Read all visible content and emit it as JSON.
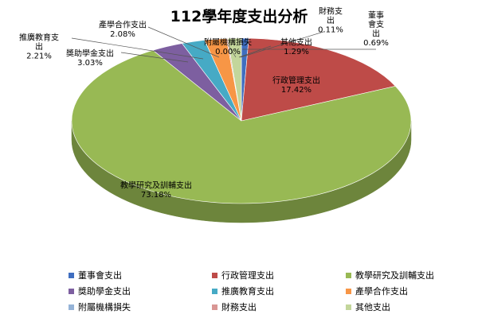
{
  "chart_data": {
    "type": "pie",
    "title": "112學年度支出分析",
    "slices": [
      {
        "name": "董事會支出",
        "value": 0.69,
        "label": "0.69%",
        "color": "#3f6ec0"
      },
      {
        "name": "行政管理支出",
        "value": 17.42,
        "label": "17.42%",
        "color": "#be4b48"
      },
      {
        "name": "教學研究及訓輔支出",
        "value": 73.18,
        "label": "73.18%",
        "color": "#98b954"
      },
      {
        "name": "獎助學金支出",
        "value": 3.03,
        "label": "3.03%",
        "color": "#7d5fa0"
      },
      {
        "name": "推廣教育支出",
        "value": 2.21,
        "label": "2.21%",
        "color": "#46aac5"
      },
      {
        "name": "產學合作支出",
        "value": 2.08,
        "label": "2.08%",
        "color": "#f79646"
      },
      {
        "name": "附屬機構損失",
        "value": 0.0,
        "label": "0.00%",
        "color": "#95b3d7"
      },
      {
        "name": "財務支出",
        "value": 0.11,
        "label": "0.11%",
        "color": "#d99694"
      },
      {
        "name": "其他支出",
        "value": 1.29,
        "label": "1.29%",
        "color": "#c3d69b"
      }
    ],
    "data_labels": [
      {
        "lines": [
          "董事",
          "會支",
          "出"
        ],
        "pct": "0.69%"
      },
      {
        "lines": [
          "行政管理支出"
        ],
        "pct": "17.42%"
      },
      {
        "lines": [
          "教學研究及訓輔支出"
        ],
        "pct": "73.18%"
      },
      {
        "lines": [
          "獎助學金支出"
        ],
        "pct": "3.03%"
      },
      {
        "lines": [
          "推廣教育支",
          "出"
        ],
        "pct": "2.21%"
      },
      {
        "lines": [
          "產學合作支出"
        ],
        "pct": "2.08%"
      },
      {
        "lines": [
          "附屬機構損失"
        ],
        "pct": "0.00%"
      },
      {
        "lines": [
          "財務支",
          "出"
        ],
        "pct": "0.11%"
      },
      {
        "lines": [
          "其他支出"
        ],
        "pct": "1.29%"
      }
    ],
    "legend_position": "bottom"
  }
}
